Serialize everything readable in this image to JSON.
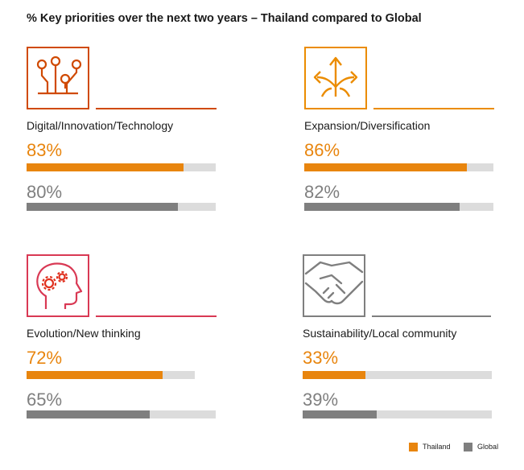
{
  "title": "% Key priorities over the next two years – Thailand compared to Global",
  "colors": {
    "thailand": "#e8850e",
    "global": "#7f7f7f",
    "track": "#dcdcdc"
  },
  "legend": {
    "thailand": "Thailand",
    "global": "Global"
  },
  "chart_data": {
    "type": "bar",
    "title": "% Key priorities over the next two years – Thailand compared to Global",
    "categories": [
      "Digital/Innovation/Technology",
      "Expansion/Diversification",
      "Evolution/New thinking",
      "Sustainability/Local community"
    ],
    "series": [
      {
        "name": "Thailand",
        "values": [
          83,
          86,
          72,
          33
        ]
      },
      {
        "name": "Global",
        "values": [
          80,
          82,
          65,
          39
        ]
      }
    ],
    "value_labels": {
      "Thailand": [
        "83%",
        "86%",
        "72%",
        "33%"
      ],
      "Global": [
        "80%",
        "82%",
        "65%",
        "39%"
      ]
    },
    "ylim": [
      0,
      100
    ],
    "legend_position": "bottom-right"
  },
  "panels": [
    {
      "icon": "circuit-icon",
      "color": "#d04a02"
    },
    {
      "icon": "diverging-arrows-icon",
      "color": "#eb8c00"
    },
    {
      "icon": "head-gears-icon",
      "color": "#e0301e"
    },
    {
      "icon": "handshake-icon",
      "color": "#7f7f7f"
    }
  ]
}
